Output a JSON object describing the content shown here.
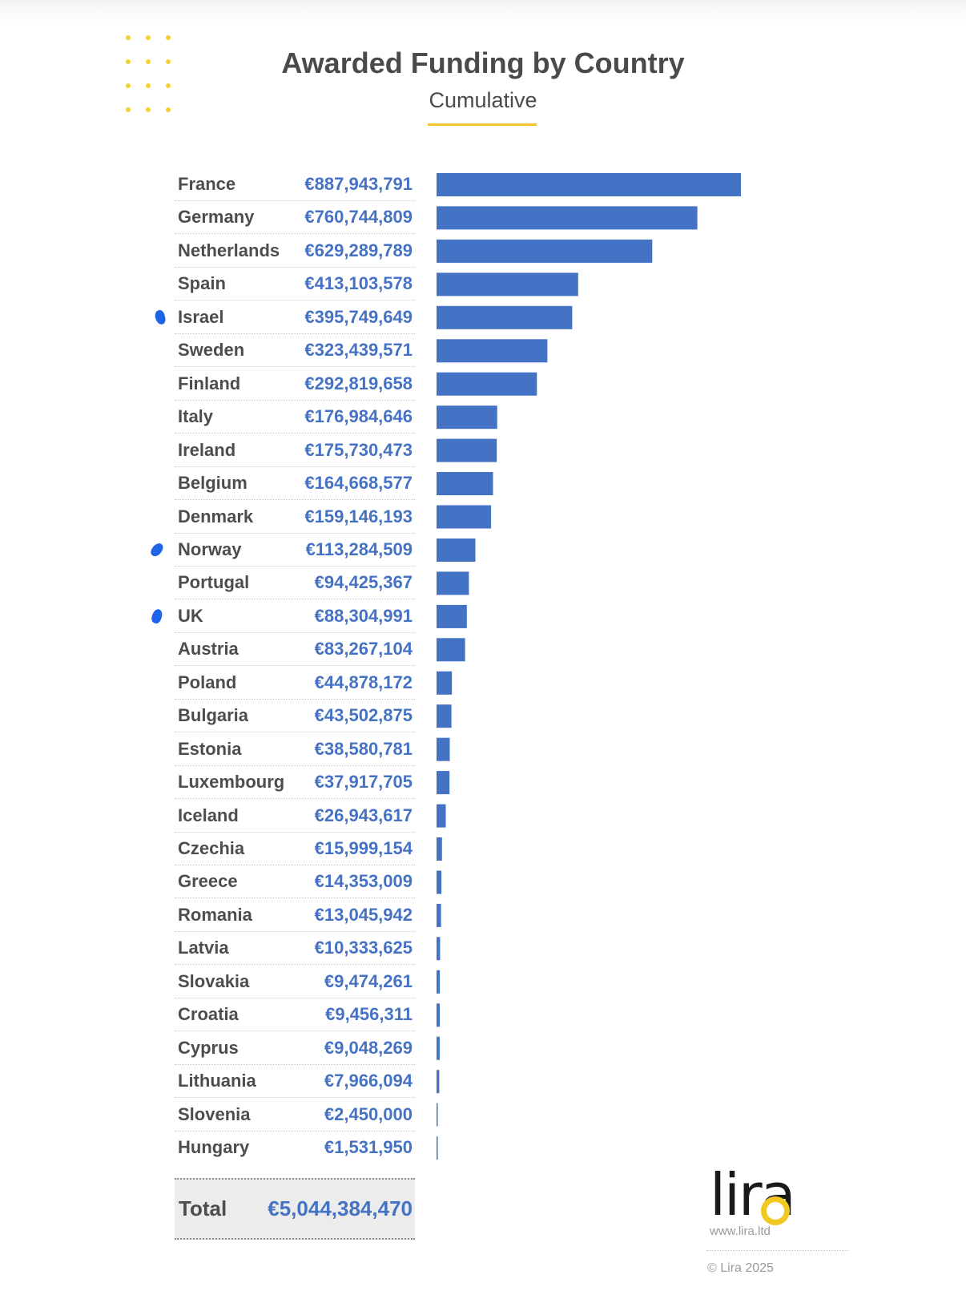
{
  "header": {
    "title": "Awarded Funding by Country",
    "subtitle": "Cumulative"
  },
  "chart_data": {
    "type": "bar",
    "orientation": "horizontal",
    "title": "Awarded Funding by Country",
    "subtitle": "Cumulative",
    "unit": "EUR",
    "bar_color": "#4472c4",
    "categories": [
      "France",
      "Germany",
      "Netherlands",
      "Spain",
      "Israel",
      "Sweden",
      "Finland",
      "Italy",
      "Ireland",
      "Belgium",
      "Denmark",
      "Norway",
      "Portugal",
      "UK",
      "Austria",
      "Poland",
      "Bulgaria",
      "Estonia",
      "Luxembourg",
      "Iceland",
      "Czechia",
      "Greece",
      "Romania",
      "Latvia",
      "Slovakia",
      "Croatia",
      "Cyprus",
      "Lithuania",
      "Slovenia",
      "Hungary"
    ],
    "values": [
      887943791,
      760744809,
      629289789,
      413103578,
      395749649,
      323439571,
      292819658,
      176984646,
      175730473,
      164668577,
      159146193,
      113284509,
      94425367,
      88304991,
      83267104,
      44878172,
      43502875,
      38580781,
      37917705,
      26943617,
      15999154,
      14353009,
      13045942,
      10333625,
      9474261,
      9456311,
      9048269,
      7966094,
      2450000,
      1531950
    ],
    "value_labels": [
      "€887,943,791",
      "€760,744,809",
      "€629,289,789",
      "€413,103,578",
      "€395,749,649",
      "€323,439,571",
      "€292,819,658",
      "€176,984,646",
      "€175,730,473",
      "€164,668,577",
      "€159,146,193",
      "€113,284,509",
      "€94,425,367",
      "€88,304,991",
      "€83,267,104",
      "€44,878,172",
      "€43,502,875",
      "€38,580,781",
      "€37,917,705",
      "€26,943,617",
      "€15,999,154",
      "€14,353,009",
      "€13,045,942",
      "€10,333,625",
      "€9,474,261",
      "€9,456,311",
      "€9,048,269",
      "€7,966,094",
      "€2,450,000",
      "€1,531,950"
    ],
    "marked_countries": [
      "Israel",
      "Norway",
      "UK"
    ],
    "mark_color": "#1e63e8",
    "total_label": "Total",
    "total_value": "€5,044,384,470",
    "xlim": [
      0,
      887943791
    ]
  },
  "branding": {
    "logo_text": "lira",
    "website": "www.lira.ltd",
    "copyright": "© Lira 2025",
    "accent_color": "#f2c823"
  }
}
